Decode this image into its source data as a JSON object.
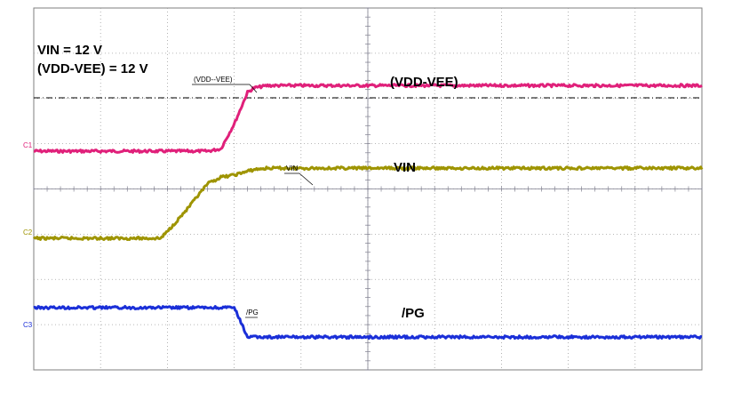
{
  "chart_data": {
    "type": "line",
    "title": "",
    "xlabel": "",
    "ylabel": "",
    "grid": true,
    "x_divisions": 10,
    "y_divisions": 8,
    "x": [
      0,
      0.5,
      1.0,
      1.5,
      1.9,
      2.0,
      2.3,
      2.6,
      2.8,
      3.0,
      3.2,
      3.3,
      3.5,
      4.0,
      5.0,
      6.0,
      7.0,
      8.0,
      9.0,
      10.0
    ],
    "series": [
      {
        "name": "(VDD-VEE)",
        "channel_label": "C2",
        "color": "#e0207a",
        "values": [
          0,
          0,
          0,
          0,
          0,
          0,
          0,
          0,
          0.05,
          0.6,
          1.3,
          1.4,
          1.45,
          1.45,
          1.45,
          1.45,
          1.45,
          1.45,
          1.45,
          1.45
        ]
      },
      {
        "name": "VIN",
        "channel_label": "C1",
        "color": "#9e9400",
        "values": [
          0,
          0,
          0,
          0,
          0,
          0.15,
          0.65,
          1.2,
          1.35,
          1.4,
          1.48,
          1.52,
          1.55,
          1.55,
          1.55,
          1.55,
          1.55,
          1.55,
          1.55,
          1.55
        ]
      },
      {
        "name": "/PG",
        "channel_label": "C3",
        "color": "#1a2fd8",
        "values": [
          0,
          0,
          0,
          0,
          0,
          0,
          0,
          0,
          0,
          0,
          -0.65,
          -0.65,
          -0.65,
          -0.65,
          -0.65,
          -0.65,
          -0.65,
          -0.65,
          -0.65,
          -0.65
        ]
      }
    ],
    "annotations": {
      "vin_setting": "VIN = 12 V",
      "vdd_vee_setting": "(VDD-VEE) = 12 V",
      "label_vdd_vee": "(VDD-VEE)",
      "label_vin": "VIN",
      "label_pg": "/PG",
      "marker_vdd_vee": "(VDD--VEE)",
      "marker_vin": "VIN",
      "marker_pg": "/PG"
    }
  }
}
